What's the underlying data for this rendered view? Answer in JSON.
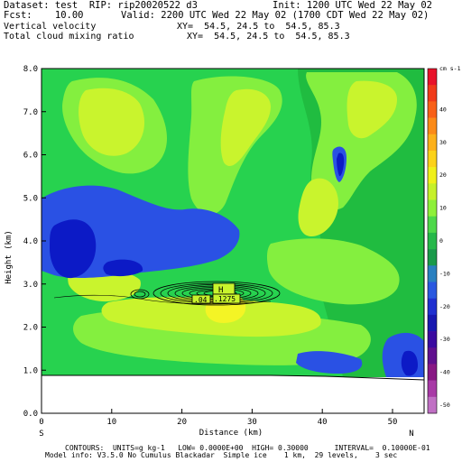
{
  "header": {
    "dataset": "Dataset: test  RIP: rip20020522 d3",
    "init": "Init: 1200 UTC Wed 22 May 02",
    "fcst": "Fcst:    10.00",
    "valid": "Valid: 2200 UTC Wed 22 May 02 (1700 CDT Wed 22 May 02)",
    "field1": "Vertical velocity",
    "xy1": "XY=  54.5, 24.5 to  54.5, 85.3",
    "field2": "Total cloud mixing ratio",
    "xy2": "XY=  54.5, 24.5 to  54.5, 85.3"
  },
  "footer": {
    "contours": "CONTOURS:  UNITS=g kg-1   LOW= 0.0000E+00  HIGH= 0.30000      INTERVAL=  0.10000E-01",
    "model": "Model info: V3.5.0 No Cumulus Blackadar  Simple ice    1 km,  29 levels,    3 sec"
  },
  "colorbar": {
    "unit": "cm s-1",
    "labels": [
      "40",
      "30",
      "20",
      "10",
      "0",
      "-10",
      "-20",
      "-30",
      "-40",
      "-50"
    ],
    "colors": [
      "#e8122a",
      "#f03a1a",
      "#f86018",
      "#fb8a18",
      "#fcb01a",
      "#fcd21a",
      "#f0f01a",
      "#c6f02a",
      "#8ef03a",
      "#4ed84a",
      "#26b84a",
      "#1a9a4a",
      "#2a80c0",
      "#2a58e0",
      "#2030d0",
      "#1818b0",
      "#3a0aa0",
      "#60108e",
      "#881884",
      "#a83aa6",
      "#c070c4"
    ]
  },
  "markers": {
    "high": "H",
    "label1": ".1275",
    "label2": ".04"
  },
  "colors": {
    "green": "#27d24f",
    "darkgreen": "#20bc40",
    "lightgreen": "#84ef3f",
    "yellowgreen": "#c9f42d",
    "yellow": "#f4f425",
    "blue": "#2a51e4",
    "darkblue": "#0c1ac6",
    "terrain": "#ffffff"
  },
  "chart_data": {
    "type": "heatmap",
    "title": "",
    "xlabel": "Distance  (km)",
    "ylabel": "Height  (km)",
    "xlim": [
      0,
      54.5
    ],
    "ylim": [
      0,
      8
    ],
    "x_ticks": [
      0,
      10,
      20,
      30,
      40,
      50
    ],
    "y_ticks": [
      "0.0",
      "1.0",
      "2.0",
      "3.0",
      "4.0",
      "5.0",
      "6.0",
      "7.0",
      "8.0"
    ],
    "x_end_labels": [
      "S",
      "N"
    ],
    "series": [
      {
        "name": "Vertical velocity",
        "units": "cm s-1",
        "shaded": true
      },
      {
        "name": "Total cloud mixing ratio",
        "units": "g kg-1",
        "contours": {
          "low": 0.0,
          "high": 0.3,
          "interval": 0.01
        }
      }
    ],
    "maximum": {
      "label": "H",
      "value": 0.1275,
      "x_km": 24.5,
      "height_km": 2.9
    },
    "annotation": {
      "value": 0.04,
      "x_km": 22.5,
      "height_km": 2.75
    }
  }
}
